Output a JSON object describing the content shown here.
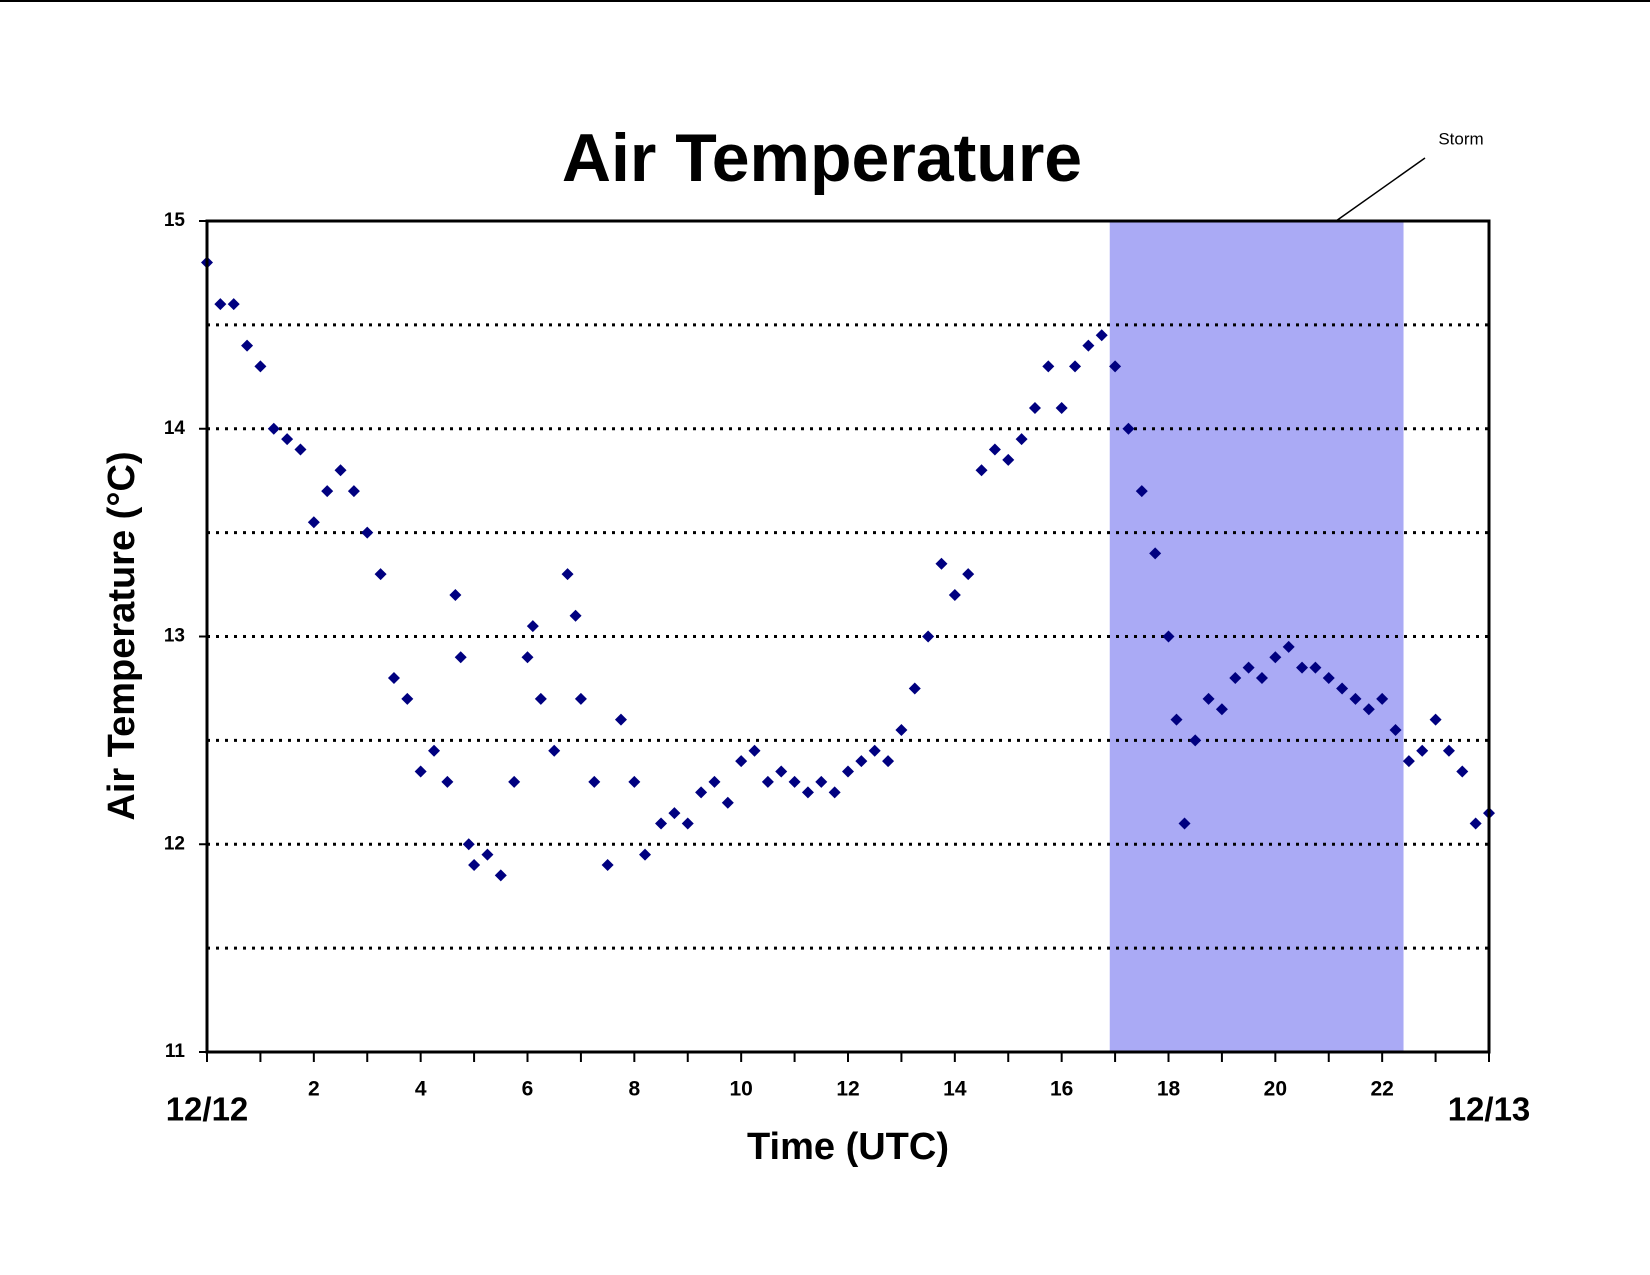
{
  "chart_data": {
    "type": "scatter",
    "title": "Air Temperature",
    "x_label": "Time (UTC)",
    "y_label": "Air Temperature (°C)",
    "color": "#000080",
    "xlim": [
      0,
      24
    ],
    "xticks": [
      {
        "value": 0,
        "label": "12/12"
      },
      2,
      4,
      6,
      8,
      10,
      12,
      14,
      16,
      18,
      20,
      22,
      {
        "value": 24,
        "label": "12/13"
      }
    ],
    "x_minor_ticks": [
      1,
      3,
      5,
      7,
      9,
      11,
      13,
      15,
      17,
      19,
      21,
      23
    ],
    "ylim": [
      11,
      15
    ],
    "yticks": [
      11,
      12,
      13,
      14,
      15
    ],
    "grid_lines": [
      11.5,
      12,
      12.5,
      13,
      13.5,
      14,
      14.5
    ],
    "storm": {
      "label": "Storm",
      "x_range": [
        16.9,
        22.4
      ],
      "color": "#aaaaf5"
    },
    "x": [
      0,
      0.25,
      0.5,
      0.75,
      1.0,
      1.25,
      1.5,
      1.75,
      2.0,
      2.25,
      2.5,
      2.75,
      3.0,
      3.25,
      3.5,
      3.75,
      4.0,
      4.25,
      4.5,
      4.65,
      4.75,
      4.9,
      5.0,
      5.25,
      5.5,
      5.75,
      6.0,
      6.1,
      6.25,
      6.5,
      6.75,
      6.9,
      7.0,
      7.25,
      7.5,
      7.75,
      8.0,
      8.2,
      8.5,
      8.75,
      9.0,
      9.25,
      9.5,
      9.75,
      10.0,
      10.25,
      10.5,
      10.75,
      11.0,
      11.25,
      11.5,
      11.75,
      12.0,
      12.25,
      12.5,
      12.75,
      13.0,
      13.25,
      13.5,
      13.75,
      14.0,
      14.25,
      14.5,
      14.75,
      15.0,
      15.25,
      15.5,
      15.75,
      16.0,
      16.25,
      16.5,
      16.75,
      17.0,
      17.25,
      17.5,
      17.75,
      18.0,
      18.15,
      18.3,
      18.5,
      18.75,
      19.0,
      19.25,
      19.5,
      19.75,
      20.0,
      20.25,
      20.5,
      20.75,
      21.0,
      21.25,
      21.5,
      21.75,
      22.0,
      22.25,
      22.5,
      22.75,
      23.0,
      23.25,
      23.5,
      23.75,
      24
    ],
    "values": [
      14.8,
      14.6,
      14.6,
      14.4,
      14.3,
      14.0,
      13.95,
      13.9,
      13.55,
      13.7,
      13.8,
      13.7,
      13.5,
      13.3,
      12.8,
      12.7,
      12.35,
      12.45,
      12.3,
      13.2,
      12.9,
      12.0,
      11.9,
      11.95,
      11.85,
      12.3,
      12.9,
      13.05,
      12.7,
      12.45,
      13.3,
      13.1,
      12.7,
      12.3,
      11.9,
      12.6,
      12.3,
      11.95,
      12.1,
      12.15,
      12.1,
      12.25,
      12.3,
      12.2,
      12.4,
      12.45,
      12.3,
      12.35,
      12.3,
      12.25,
      12.3,
      12.25,
      12.35,
      12.4,
      12.45,
      12.4,
      12.55,
      12.75,
      13.0,
      13.35,
      13.2,
      13.3,
      13.8,
      13.9,
      13.85,
      13.95,
      14.1,
      14.3,
      14.1,
      14.3,
      14.4,
      14.45,
      14.3,
      14.0,
      13.7,
      13.4,
      13.0,
      12.6,
      12.1,
      12.5,
      12.7,
      12.65,
      12.8,
      12.85,
      12.8,
      12.9,
      12.95,
      12.85,
      12.85,
      12.8,
      12.75,
      12.7,
      12.65,
      12.7,
      12.55,
      12.4,
      12.45,
      12.6,
      12.45,
      12.35,
      12.1,
      12.15
    ]
  }
}
